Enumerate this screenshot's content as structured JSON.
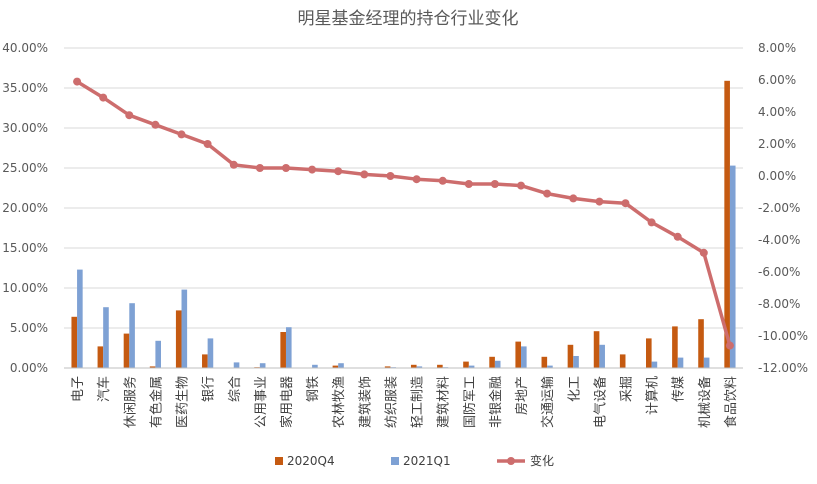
{
  "chart_data": {
    "type": "bar",
    "title": "明星基金经理的持仓行业变化",
    "categories": [
      "电子",
      "汽车",
      "休闲服务",
      "有色金属",
      "医药生物",
      "银行",
      "综合",
      "公用事业",
      "家用电器",
      "钢铁",
      "农林牧渔",
      "建筑装饰",
      "纺织服装",
      "轻工制造",
      "建筑材料",
      "国防军工",
      "非银金融",
      "房地产",
      "交通运输",
      "化工",
      "电气设备",
      "采掘",
      "计算机",
      "传媒",
      "机械设备",
      "食品饮料"
    ],
    "series": [
      {
        "name": "2020Q4",
        "axis": "left",
        "kind": "bar",
        "color": "#c55a11",
        "values": [
          6.4,
          2.7,
          4.3,
          0.2,
          7.2,
          1.7,
          0.0,
          0.1,
          4.5,
          0.0,
          0.3,
          0.0,
          0.2,
          0.4,
          0.4,
          0.8,
          1.4,
          3.3,
          1.4,
          2.9,
          4.6,
          1.7,
          3.7,
          5.2,
          6.1,
          35.9
        ]
      },
      {
        "name": "2021Q1",
        "axis": "left",
        "kind": "bar",
        "color": "#7ea1d4",
        "values": [
          12.3,
          7.6,
          8.1,
          3.4,
          9.8,
          3.7,
          0.7,
          0.6,
          5.1,
          0.4,
          0.6,
          0.0,
          0.1,
          0.2,
          0.1,
          0.3,
          0.9,
          2.7,
          0.3,
          1.5,
          2.9,
          0.0,
          0.8,
          1.3,
          1.3,
          25.3
        ]
      },
      {
        "name": "变化",
        "axis": "right",
        "kind": "line",
        "color": "#cd6d6d",
        "values": [
          5.9,
          4.9,
          3.8,
          3.2,
          2.6,
          2.0,
          0.7,
          0.5,
          0.5,
          0.4,
          0.3,
          0.1,
          0.0,
          -0.2,
          -0.3,
          -0.5,
          -0.5,
          -0.6,
          -1.1,
          -1.4,
          -1.6,
          -1.7,
          -2.9,
          -3.8,
          -4.8,
          -10.6
        ]
      }
    ],
    "y_left": {
      "min": 0,
      "max": 40,
      "step": 5,
      "ticks": [
        "0.00%",
        "5.00%",
        "10.00%",
        "15.00%",
        "20.00%",
        "25.00%",
        "30.00%",
        "35.00%",
        "40.00%"
      ]
    },
    "y_right": {
      "min": -12,
      "max": 8,
      "step": 2,
      "ticks": [
        "-12.00%",
        "-10.00%",
        "-8.00%",
        "-6.00%",
        "-4.00%",
        "-2.00%",
        "0.00%",
        "2.00%",
        "4.00%",
        "6.00%",
        "8.00%"
      ]
    },
    "grid": true,
    "legend": "bottom"
  }
}
